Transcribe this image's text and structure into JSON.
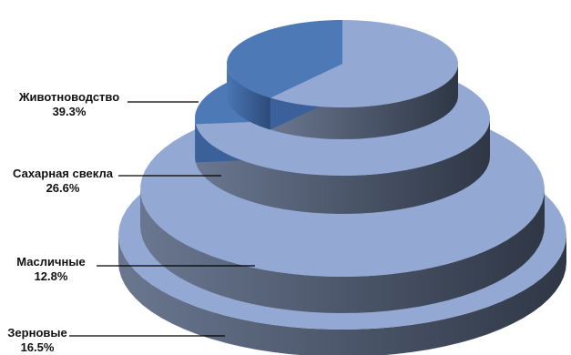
{
  "chart_data": {
    "type": "pie",
    "style": "stacked-3d-tiers",
    "categories": [
      "Животноводство",
      "Сахарная свекла",
      "Масличные",
      "Зерновые"
    ],
    "values": [
      39.3,
      26.6,
      12.8,
      16.5
    ],
    "value_labels": [
      "39.3%",
      "26.6%",
      "12.8%",
      "16.5%"
    ],
    "title": "",
    "legend": "none",
    "colors": {
      "highlight_top": "#4d7ab7",
      "highlight_side": "#3c619a",
      "rest_top": "#93a9d3",
      "rest_side": "#4a5670",
      "leader": "#000000"
    }
  }
}
